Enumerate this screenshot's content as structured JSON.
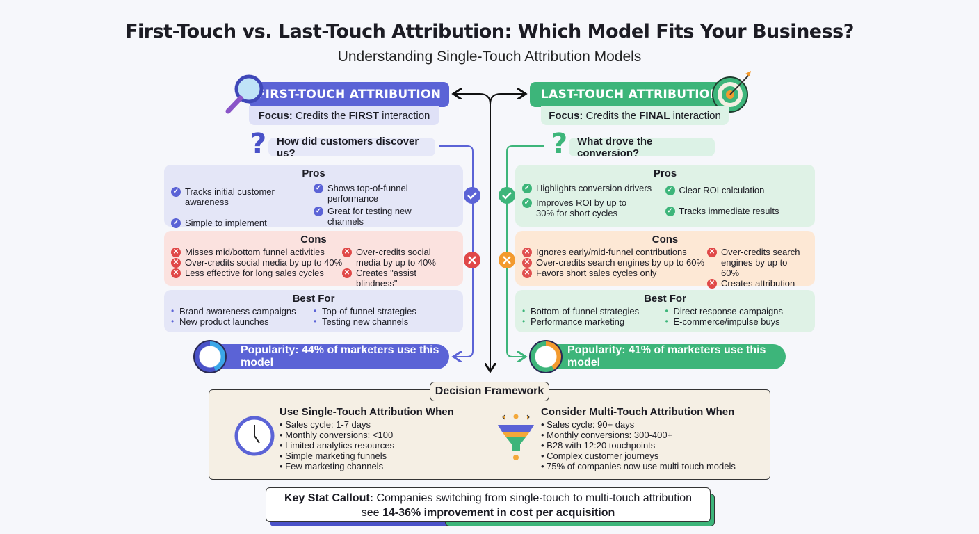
{
  "title": "First-Touch vs. Last-Touch Attribution: Which Model Fits Your Business?",
  "subtitle": "Understanding Single-Touch Attribution Models",
  "colors": {
    "first": "#5b63d6",
    "last": "#3db57a",
    "cons_red": "#e04848",
    "cons_orange": "#f39a2e"
  },
  "first": {
    "header": "FIRST-TOUCH ATTRIBUTION",
    "icon": "magnifier-icon",
    "focus_label": "Focus:",
    "focus_pre": "Credits the",
    "focus_bold": "FIRST",
    "focus_post": "interaction",
    "question": "How did customers discover us?",
    "pros_title": "Pros",
    "pros": [
      "Tracks initial customer awareness",
      "Simple to implement",
      "Shows top-of-funnel performance",
      "Great for testing new channels"
    ],
    "cons_title": "Cons",
    "cons": [
      "Misses mid/bottom funnel activities",
      "Over-credits social media by up to 40%",
      "Less effective for long sales cycles",
      "Over-credits social media by up to 40%",
      "Creates \"assist blindness\""
    ],
    "best_title": "Best For",
    "best": [
      "Brand awareness campaigns",
      "New product launches",
      "Top-of-funnel strategies",
      "Testing new channels"
    ],
    "popularity": "Popularity: 44% of marketers use this model",
    "popularity_pct": 44
  },
  "last": {
    "header": "LAST-TOUCH ATTRIBUTION",
    "icon": "target-icon",
    "focus_label": "Focus:",
    "focus_pre": "Credits the",
    "focus_bold": "FINAL",
    "focus_post": "interaction",
    "question": "What drove the conversion?",
    "pros_title": "Pros",
    "pros": [
      "Highlights conversion drivers",
      "Improves ROI by up to 30% for short cycles",
      "Clear ROI calculation",
      "Tracks immediate results"
    ],
    "cons_title": "Cons",
    "cons": [
      "Ignores early/mid-funnel contributions",
      "Over-credits search engines by up to 60%",
      "Favors short sales cycles only",
      "Over-credits search engines by up to 60%",
      "Creates attribution errors"
    ],
    "best_title": "Best For",
    "best": [
      "Bottom-of-funnel strategies",
      "Performance marketing",
      "Direct response campaigns",
      "E-commerce/impulse buys"
    ],
    "popularity": "Popularity: 41% of marketers use this model",
    "popularity_pct": 41
  },
  "framework": {
    "label": "Decision Framework",
    "single_title": "Use Single-Touch Attribution When",
    "single": [
      "Sales cycle: 1-7 days",
      "Monthly conversions: <100",
      "Limited analytics resources",
      "Simple marketing funnels",
      "Few marketing channels"
    ],
    "multi_title": "Consider Multi-Touch Attribution When",
    "multi": [
      "Sales cycle: 90+ days",
      "Monthly conversions: 300-400+",
      "B28 with 12:20 touchpoints",
      "Complex customer journeys",
      "75% of companies now use multi-touch models"
    ]
  },
  "key": {
    "label": "Key Stat Callout:",
    "line1": "Companies switching from single-touch to multi-touch attribution",
    "pre": "see",
    "bold": "14-36% improvement in cost per acquisition"
  }
}
